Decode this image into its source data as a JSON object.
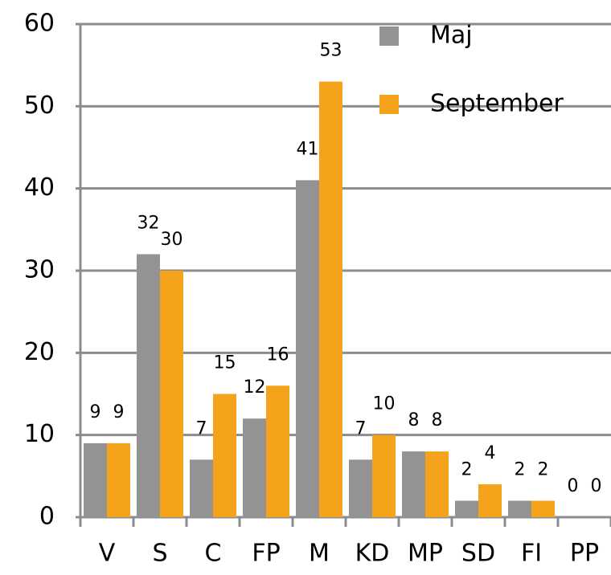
{
  "chart_data": {
    "type": "bar",
    "categories": [
      "V",
      "S",
      "C",
      "FP",
      "M",
      "KD",
      "MP",
      "SD",
      "FI",
      "PP"
    ],
    "series": [
      {
        "name": "Maj",
        "color": "#939393",
        "values": [
          9,
          32,
          7,
          12,
          41,
          7,
          8,
          2,
          2,
          0
        ]
      },
      {
        "name": "September",
        "color": "#f5a31a",
        "values": [
          9,
          30,
          15,
          16,
          53,
          10,
          8,
          4,
          2,
          0
        ]
      }
    ],
    "ylim": [
      0,
      60
    ],
    "yticks": [
      0,
      10,
      20,
      30,
      40,
      50,
      60
    ],
    "grid": true,
    "legend": "top-right"
  }
}
